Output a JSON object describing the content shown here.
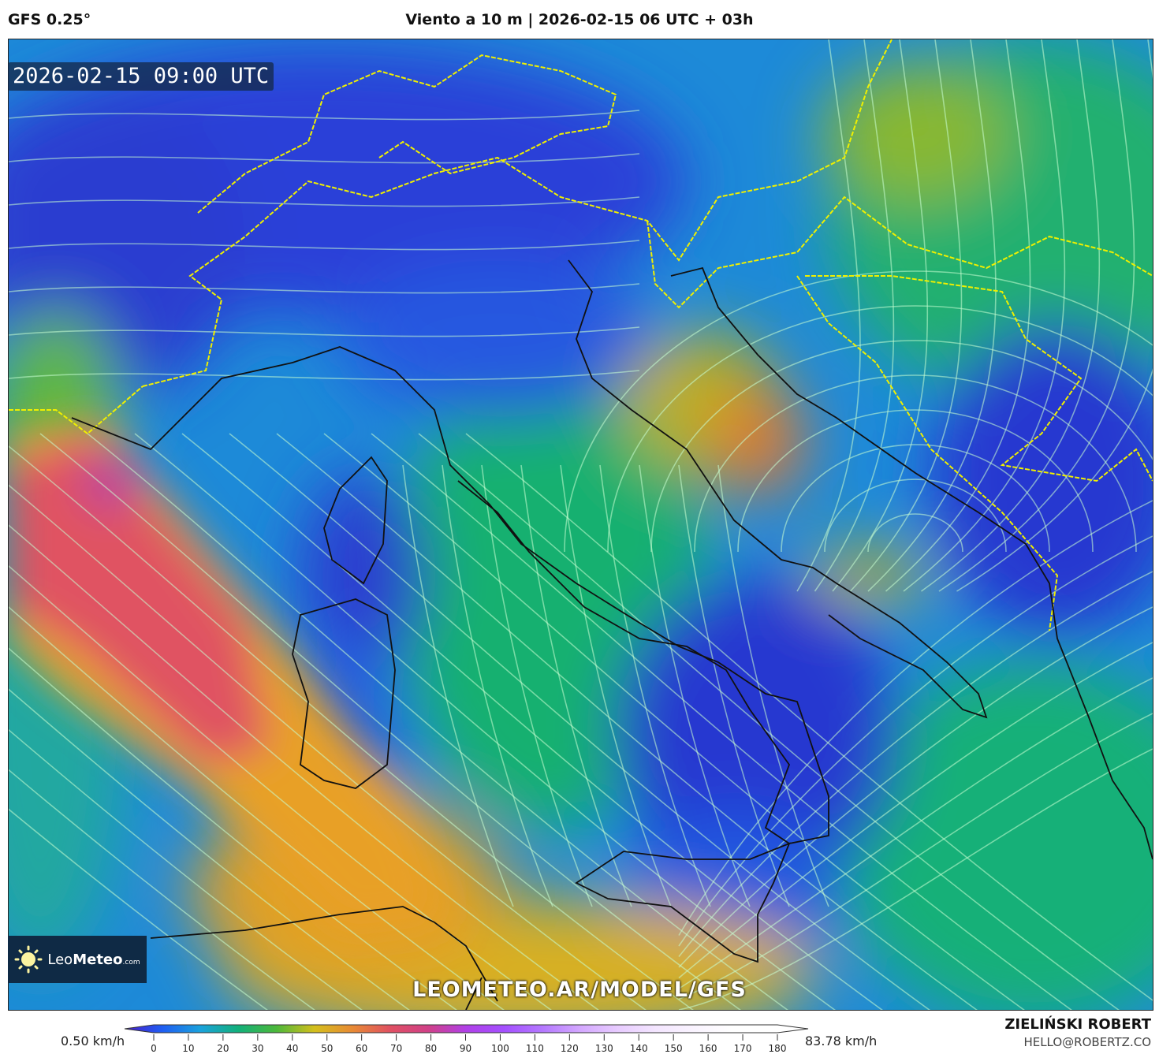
{
  "header": {
    "model": "GFS 0.25°",
    "title": "Viento a 10 m | 2026-02-15 06 UTC + 03h"
  },
  "map": {
    "valid_time": "2026-02-15 09:00 UTC",
    "watermark": "LEOMETEO.AR/MODEL/GFS",
    "logo": {
      "name_light": "Leo",
      "name_bold": "Meteo",
      "suffix": ".com"
    },
    "colors": {
      "coastline": "#000000",
      "country_border": "#f0f000",
      "region_border": "#c8c8c8"
    }
  },
  "legend": {
    "min_label": "0.50 km/h",
    "max_label": "83.78 km/h",
    "ticks": [
      "0",
      "10",
      "20",
      "30",
      "40",
      "50",
      "60",
      "70",
      "80",
      "90",
      "100",
      "110",
      "120",
      "130",
      "140",
      "150",
      "160",
      "170",
      "180"
    ],
    "color_stops": [
      "#4a1ccc",
      "#1f5ef2",
      "#1aa2dc",
      "#12b07a",
      "#4cb83a",
      "#d4bf1c",
      "#e88a34",
      "#e05062",
      "#d04088",
      "#b040e8",
      "#a450ff",
      "#b478ff",
      "#d4a8ff",
      "#e8ccff",
      "#f4e6ff",
      "#faf4ff",
      "#ffffff",
      "#ffffff",
      "#ffffff"
    ]
  },
  "footer": {
    "author": "ZIELIŃSKI ROBERT",
    "email": "HELLO@ROBERTZ.CO"
  }
}
